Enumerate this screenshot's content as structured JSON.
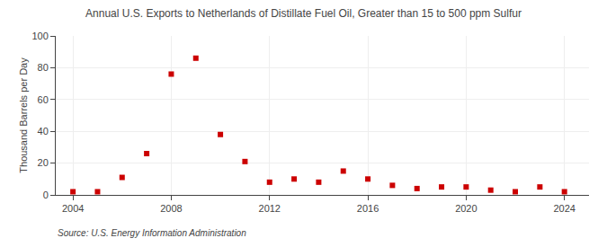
{
  "chart_data": {
    "type": "scatter",
    "title": "Annual U.S. Exports to Netherlands of Distillate Fuel Oil, Greater than 15 to 500 ppm Sulfur",
    "ylabel": "Thousand Barrels per Day",
    "annotations": [
      "Source: U.S. Energy Information Administration"
    ],
    "x": [
      2004,
      2005,
      2006,
      2007,
      2008,
      2009,
      2010,
      2011,
      2012,
      2013,
      2014,
      2015,
      2016,
      2017,
      2018,
      2019,
      2020,
      2021,
      2022,
      2023,
      2024
    ],
    "values": [
      2,
      2,
      11,
      26,
      76,
      86,
      38,
      21,
      8,
      10,
      8,
      15,
      10,
      6,
      4,
      5,
      5,
      3,
      2,
      5,
      2
    ],
    "color": "#cc0000",
    "marker": "square",
    "xlim": [
      2003.3,
      2025.0
    ],
    "xticks": [
      2004,
      2008,
      2012,
      2016,
      2020,
      2024
    ],
    "ylim": [
      0,
      100
    ],
    "yticks": [
      0,
      20,
      40,
      60,
      80,
      100
    ],
    "grid": true
  }
}
